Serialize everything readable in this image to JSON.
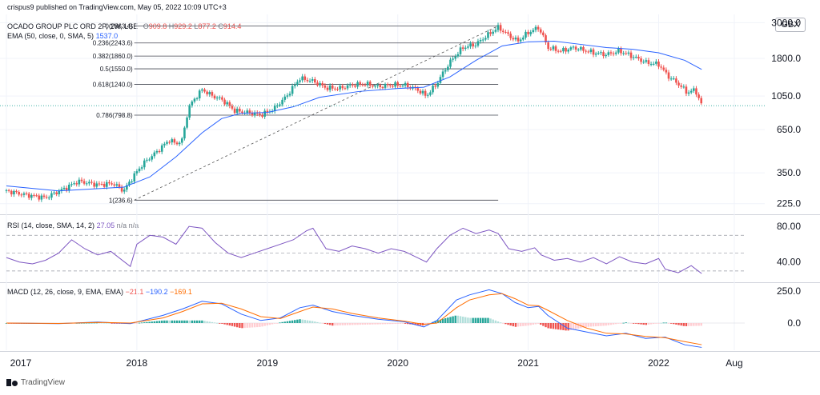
{
  "header": {
    "text": "crispus9 published on TradingView.com, May 05, 2022 10:09 UTC+3"
  },
  "footer": {
    "brand": "TradingView"
  },
  "legends": {
    "main": {
      "symbol": "OCADO GROUP PLC ORD 2P, 1W, LSE",
      "o": "909.8",
      "h": "929.2",
      "l": "877.2",
      "c": "914.4"
    },
    "ema": {
      "label": "EMA (50, close, 0, SMA, 5)",
      "value": "1537.0"
    },
    "rsi": {
      "label": "RSI (14, close, SMA, 14, 2)",
      "value": "27.05",
      "extra": "n/a  n/a"
    },
    "macd": {
      "label": "MACD (12, 26, close, 9, EMA, EMA)",
      "hist": "−21.1",
      "macd": "−190.2",
      "signal": "−169.1"
    }
  },
  "currency": "GBX",
  "colors": {
    "up": "#26a69a",
    "down": "#ef5350",
    "ema": "#2962ff",
    "rsi": "#7e57c2",
    "macd": "#2962ff",
    "signal": "#ff6d00",
    "fib": "#131722",
    "grid": "#f0f3fa"
  },
  "chart_data": [
    {
      "type": "candlestick",
      "title": "OCADO GROUP PLC ORD 2P, 1W, LSE",
      "scale": "log",
      "y_ticks": [
        "3000.0",
        "1800.0",
        "1050.0",
        "650.0",
        "350.0",
        "225.0"
      ],
      "y_tick_values": [
        3000,
        1800,
        1050,
        650,
        350,
        225
      ],
      "ylim": [
        200,
        3300
      ],
      "x_ticks": [
        "2017",
        "2018",
        "2019",
        "2020",
        "2021",
        "2022",
        "Aug"
      ],
      "x_tick_values": [
        2017.0,
        2018.0,
        2019.0,
        2020.0,
        2021.0,
        2022.0,
        2022.58
      ],
      "xlim": [
        2017.0,
        2022.66
      ],
      "last_price": 914.4,
      "close_path": [
        [
          2017.0,
          270
        ],
        [
          2017.15,
          255
        ],
        [
          2017.3,
          245
        ],
        [
          2017.45,
          280
        ],
        [
          2017.55,
          310
        ],
        [
          2017.7,
          295
        ],
        [
          2017.82,
          300
        ],
        [
          2017.9,
          270
        ],
        [
          2017.96,
          320
        ],
        [
          2018.05,
          400
        ],
        [
          2018.15,
          470
        ],
        [
          2018.25,
          560
        ],
        [
          2018.3,
          530
        ],
        [
          2018.35,
          560
        ],
        [
          2018.4,
          900
        ],
        [
          2018.5,
          1150
        ],
        [
          2018.58,
          1050
        ],
        [
          2018.65,
          1000
        ],
        [
          2018.75,
          850
        ],
        [
          2018.85,
          830
        ],
        [
          2018.95,
          800
        ],
        [
          2019.05,
          870
        ],
        [
          2019.15,
          1050
        ],
        [
          2019.25,
          1350
        ],
        [
          2019.35,
          1300
        ],
        [
          2019.45,
          1180
        ],
        [
          2019.55,
          1170
        ],
        [
          2019.65,
          1230
        ],
        [
          2019.75,
          1250
        ],
        [
          2019.85,
          1200
        ],
        [
          2019.95,
          1230
        ],
        [
          2020.05,
          1230
        ],
        [
          2020.15,
          1150
        ],
        [
          2020.22,
          1050
        ],
        [
          2020.3,
          1250
        ],
        [
          2020.4,
          1700
        ],
        [
          2020.5,
          2100
        ],
        [
          2020.6,
          2200
        ],
        [
          2020.7,
          2550
        ],
        [
          2020.77,
          2800
        ],
        [
          2020.85,
          2500
        ],
        [
          2020.92,
          2300
        ],
        [
          2021.0,
          2600
        ],
        [
          2021.08,
          2800
        ],
        [
          2021.15,
          2100
        ],
        [
          2021.25,
          2000
        ],
        [
          2021.35,
          2100
        ],
        [
          2021.5,
          1950
        ],
        [
          2021.6,
          1900
        ],
        [
          2021.7,
          2000
        ],
        [
          2021.8,
          1850
        ],
        [
          2021.9,
          1700
        ],
        [
          2022.0,
          1650
        ],
        [
          2022.07,
          1400
        ],
        [
          2022.15,
          1250
        ],
        [
          2022.22,
          1100
        ],
        [
          2022.28,
          1150
        ],
        [
          2022.33,
          914.4
        ]
      ],
      "ema50": [
        [
          2017.0,
          290
        ],
        [
          2017.4,
          270
        ],
        [
          2017.9,
          285
        ],
        [
          2018.1,
          330
        ],
        [
          2018.3,
          440
        ],
        [
          2018.5,
          620
        ],
        [
          2018.65,
          760
        ],
        [
          2018.8,
          820
        ],
        [
          2019.0,
          830
        ],
        [
          2019.2,
          900
        ],
        [
          2019.4,
          1030
        ],
        [
          2019.7,
          1120
        ],
        [
          2020.0,
          1170
        ],
        [
          2020.2,
          1190
        ],
        [
          2020.4,
          1380
        ],
        [
          2020.6,
          1750
        ],
        [
          2020.8,
          2150
        ],
        [
          2021.0,
          2280
        ],
        [
          2021.2,
          2300
        ],
        [
          2021.4,
          2200
        ],
        [
          2021.6,
          2100
        ],
        [
          2021.8,
          2050
        ],
        [
          2022.0,
          1950
        ],
        [
          2022.2,
          1750
        ],
        [
          2022.33,
          1537
        ]
      ],
      "fibonacci": [
        {
          "label": "0(2863.4)",
          "value": 2863.4
        },
        {
          "label": "0.236(2243.6)",
          "value": 2243.6
        },
        {
          "label": "0.382(1860.0)",
          "value": 1860.0
        },
        {
          "label": "0.5(1550.0)",
          "value": 1550.0
        },
        {
          "label": "0.618(1240.0)",
          "value": 1240.0
        },
        {
          "label": "0.786(798.8)",
          "value": 798.8
        },
        {
          "label": "1(236.6)",
          "value": 236.6
        }
      ],
      "fib_range_x": [
        2017.98,
        2020.77
      ]
    },
    {
      "type": "line",
      "title": "RSI (14, close, SMA, 14, 2)",
      "y_ticks": [
        "80.00",
        "40.00"
      ],
      "y_tick_values": [
        80,
        40
      ],
      "ylim": [
        20,
        90
      ],
      "band_levels": [
        70,
        50,
        30
      ],
      "series": [
        {
          "values": [
            [
              2017.0,
              45
            ],
            [
              2017.1,
              40
            ],
            [
              2017.2,
              38
            ],
            [
              2017.3,
              42
            ],
            [
              2017.4,
              50
            ],
            [
              2017.5,
              65
            ],
            [
              2017.6,
              55
            ],
            [
              2017.7,
              48
            ],
            [
              2017.8,
              52
            ],
            [
              2017.95,
              35
            ],
            [
              2018.0,
              60
            ],
            [
              2018.1,
              70
            ],
            [
              2018.2,
              68
            ],
            [
              2018.3,
              60
            ],
            [
              2018.4,
              80
            ],
            [
              2018.5,
              78
            ],
            [
              2018.6,
              62
            ],
            [
              2018.7,
              50
            ],
            [
              2018.8,
              45
            ],
            [
              2018.9,
              50
            ],
            [
              2019.0,
              55
            ],
            [
              2019.1,
              60
            ],
            [
              2019.2,
              65
            ],
            [
              2019.3,
              75
            ],
            [
              2019.35,
              78
            ],
            [
              2019.45,
              55
            ],
            [
              2019.55,
              52
            ],
            [
              2019.65,
              58
            ],
            [
              2019.75,
              55
            ],
            [
              2019.85,
              50
            ],
            [
              2019.95,
              55
            ],
            [
              2020.05,
              52
            ],
            [
              2020.15,
              45
            ],
            [
              2020.22,
              40
            ],
            [
              2020.3,
              55
            ],
            [
              2020.4,
              70
            ],
            [
              2020.5,
              78
            ],
            [
              2020.6,
              72
            ],
            [
              2020.7,
              76
            ],
            [
              2020.77,
              72
            ],
            [
              2020.85,
              55
            ],
            [
              2020.95,
              52
            ],
            [
              2021.05,
              56
            ],
            [
              2021.1,
              48
            ],
            [
              2021.2,
              42
            ],
            [
              2021.3,
              44
            ],
            [
              2021.4,
              40
            ],
            [
              2021.5,
              45
            ],
            [
              2021.6,
              38
            ],
            [
              2021.7,
              46
            ],
            [
              2021.8,
              40
            ],
            [
              2021.9,
              38
            ],
            [
              2022.0,
              44
            ],
            [
              2022.05,
              32
            ],
            [
              2022.15,
              28
            ],
            [
              2022.2,
              32
            ],
            [
              2022.25,
              36
            ],
            [
              2022.33,
              27.05
            ]
          ]
        }
      ]
    },
    {
      "type": "line+bar",
      "title": "MACD (12, 26, close, 9, EMA, EMA)",
      "y_ticks": [
        "250.0",
        "0.0"
      ],
      "y_tick_values": [
        250,
        0
      ],
      "ylim": [
        -200,
        300
      ],
      "series": [
        {
          "values": [
            [
              2017.0,
              0
            ],
            [
              2017.4,
              -5
            ],
            [
              2017.7,
              8
            ],
            [
              2017.95,
              -5
            ],
            [
              2018.2,
              60
            ],
            [
              2018.35,
              110
            ],
            [
              2018.5,
              170
            ],
            [
              2018.65,
              150
            ],
            [
              2018.8,
              70
            ],
            [
              2018.95,
              20
            ],
            [
              2019.1,
              40
            ],
            [
              2019.25,
              120
            ],
            [
              2019.35,
              140
            ],
            [
              2019.5,
              90
            ],
            [
              2019.65,
              60
            ],
            [
              2019.85,
              30
            ],
            [
              2020.05,
              10
            ],
            [
              2020.2,
              -30
            ],
            [
              2020.3,
              20
            ],
            [
              2020.45,
              180
            ],
            [
              2020.55,
              220
            ],
            [
              2020.7,
              260
            ],
            [
              2020.8,
              230
            ],
            [
              2020.9,
              160
            ],
            [
              2021.0,
              120
            ],
            [
              2021.08,
              130
            ],
            [
              2021.15,
              60
            ],
            [
              2021.3,
              -40
            ],
            [
              2021.45,
              -70
            ],
            [
              2021.6,
              -100
            ],
            [
              2021.75,
              -80
            ],
            [
              2021.9,
              -120
            ],
            [
              2022.05,
              -110
            ],
            [
              2022.2,
              -170
            ],
            [
              2022.33,
              -190.2
            ]
          ]
        },
        {
          "values": [
            [
              2017.0,
              0
            ],
            [
              2017.4,
              -3
            ],
            [
              2017.7,
              5
            ],
            [
              2017.95,
              0
            ],
            [
              2018.2,
              40
            ],
            [
              2018.35,
              90
            ],
            [
              2018.5,
              150
            ],
            [
              2018.65,
              155
            ],
            [
              2018.8,
              110
            ],
            [
              2018.95,
              50
            ],
            [
              2019.1,
              35
            ],
            [
              2019.25,
              90
            ],
            [
              2019.35,
              125
            ],
            [
              2019.5,
              110
            ],
            [
              2019.65,
              75
            ],
            [
              2019.85,
              40
            ],
            [
              2020.05,
              15
            ],
            [
              2020.2,
              -10
            ],
            [
              2020.3,
              0
            ],
            [
              2020.45,
              120
            ],
            [
              2020.55,
              180
            ],
            [
              2020.7,
              220
            ],
            [
              2020.8,
              230
            ],
            [
              2020.9,
              190
            ],
            [
              2021.0,
              140
            ],
            [
              2021.08,
              135
            ],
            [
              2021.15,
              100
            ],
            [
              2021.3,
              20
            ],
            [
              2021.45,
              -40
            ],
            [
              2021.6,
              -80
            ],
            [
              2021.75,
              -85
            ],
            [
              2021.9,
              -105
            ],
            [
              2022.05,
              -115
            ],
            [
              2022.2,
              -145
            ],
            [
              2022.33,
              -169.1
            ]
          ]
        }
      ]
    }
  ]
}
